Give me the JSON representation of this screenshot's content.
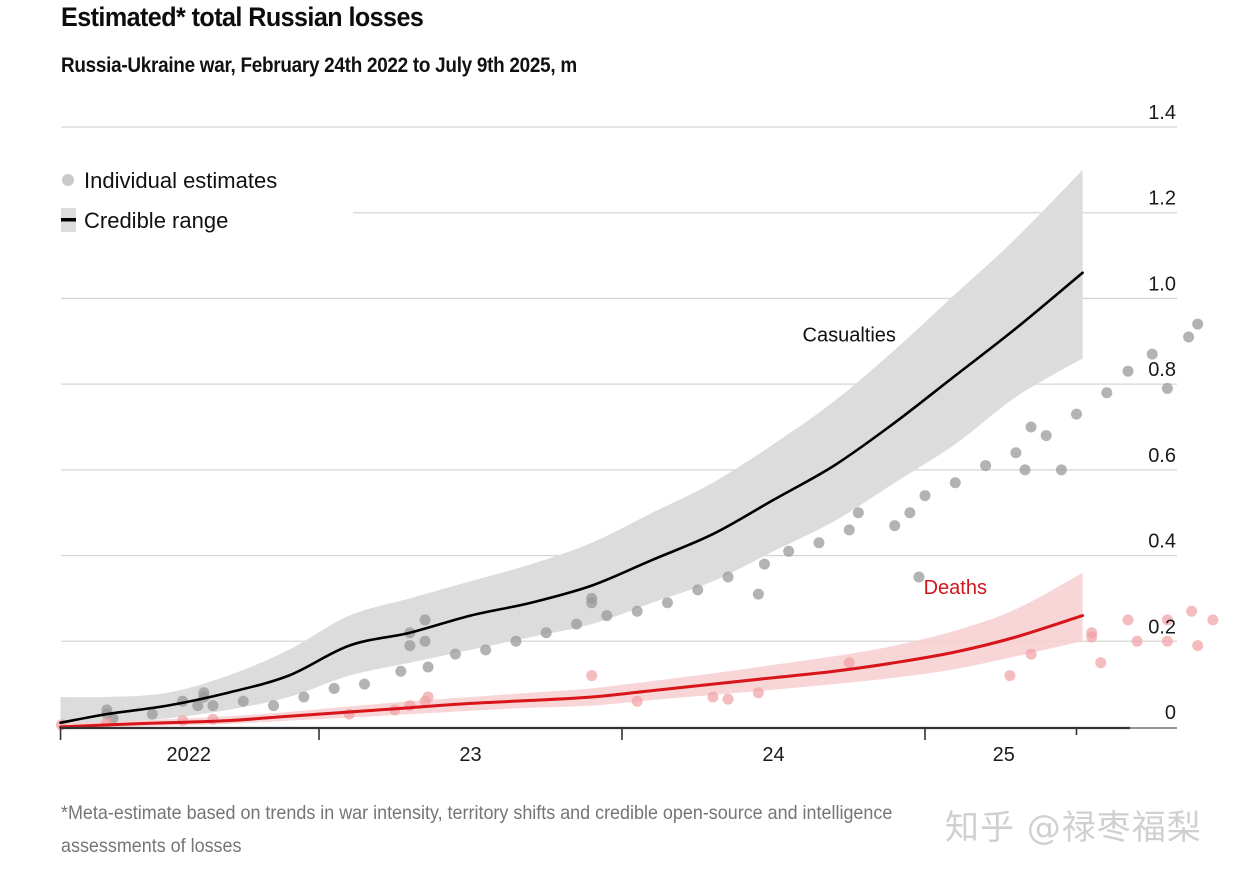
{
  "header": {
    "title": "Estimated* total Russian losses",
    "subtitle": "Russia-Ukraine war, February 24th 2022 to July 9th 2025, m"
  },
  "footnote": {
    "line1": "*Meta-estimate based on trends in war intensity, territory shifts and credible open-source and intelligence",
    "line2": "assessments of losses"
  },
  "watermark": "知乎 @禄枣福梨",
  "colors": {
    "casualties_line": "#000000",
    "casualties_band": "#dcdcdc",
    "casualties_points": "#9a9a9a",
    "deaths_line": "#d8151b",
    "deaths_band": "#f7cfd0",
    "deaths_points": "#f0a0a3",
    "grid": "#d6d6d6",
    "axis": "#333333"
  },
  "chart_data": {
    "type": "line",
    "title": "Estimated* total Russian losses",
    "subtitle": "Russia-Ukraine war, February 24th 2022 to July 9th 2025, m",
    "xlabel": "",
    "ylabel": "m",
    "x_unit": "years since Jan 1 2022",
    "xlim": [
      0.147,
      3.52
    ],
    "ylim": [
      0,
      1.4
    ],
    "y_ticks": [
      0,
      0.2,
      0.4,
      0.6,
      0.8,
      1.0,
      1.2,
      1.4
    ],
    "y_tick_labels": [
      "0",
      "0.2",
      "0.4",
      "0.6",
      "0.8",
      "1.0",
      "1.2",
      "1.4"
    ],
    "y_axis_side": "right",
    "x_ticks": [
      0.147,
      1.0,
      2.0,
      3.0,
      3.5
    ],
    "x_tick_labels": [
      {
        "label": "2022",
        "at": 0.57
      },
      {
        "label": "23",
        "at": 1.5
      },
      {
        "label": "24",
        "at": 2.5
      },
      {
        "label": "25",
        "at": 3.26
      }
    ],
    "grid": true,
    "legend": {
      "position": "top-left",
      "entries": [
        {
          "label": "Individual estimates",
          "symbol": "dot"
        },
        {
          "label": "Credible range",
          "symbol": "line-with-band"
        }
      ]
    },
    "series": [
      {
        "name": "Casualties",
        "label_at": [
          2.75,
          0.9
        ],
        "x": [
          0.147,
          0.3,
          0.5,
          0.7,
          0.9,
          1.1,
          1.3,
          1.5,
          1.7,
          1.9,
          2.1,
          2.3,
          2.5,
          2.7,
          2.9,
          3.1,
          3.3,
          3.52
        ],
        "central": [
          0.01,
          0.03,
          0.05,
          0.08,
          0.12,
          0.19,
          0.22,
          0.26,
          0.29,
          0.33,
          0.39,
          0.45,
          0.53,
          0.61,
          0.71,
          0.82,
          0.93,
          1.06
        ],
        "lower": [
          0.0,
          0.01,
          0.02,
          0.04,
          0.07,
          0.12,
          0.15,
          0.18,
          0.21,
          0.24,
          0.29,
          0.34,
          0.41,
          0.48,
          0.57,
          0.66,
          0.77,
          0.86
        ],
        "upper": [
          0.07,
          0.07,
          0.08,
          0.12,
          0.18,
          0.26,
          0.3,
          0.34,
          0.38,
          0.43,
          0.5,
          0.57,
          0.66,
          0.76,
          0.88,
          1.01,
          1.14,
          1.3
        ],
        "points": [
          [
            0.3,
            0.04
          ],
          [
            0.3,
            0.03
          ],
          [
            0.32,
            0.02
          ],
          [
            0.45,
            0.03
          ],
          [
            0.55,
            0.06
          ],
          [
            0.6,
            0.05
          ],
          [
            0.62,
            0.08
          ],
          [
            0.62,
            0.07
          ],
          [
            0.65,
            0.05
          ],
          [
            0.75,
            0.06
          ],
          [
            0.85,
            0.05
          ],
          [
            0.95,
            0.07
          ],
          [
            1.05,
            0.09
          ],
          [
            1.15,
            0.1
          ],
          [
            1.27,
            0.13
          ],
          [
            1.3,
            0.19
          ],
          [
            1.3,
            0.22
          ],
          [
            1.35,
            0.25
          ],
          [
            1.35,
            0.2
          ],
          [
            1.36,
            0.14
          ],
          [
            1.45,
            0.17
          ],
          [
            1.55,
            0.18
          ],
          [
            1.65,
            0.2
          ],
          [
            1.75,
            0.22
          ],
          [
            1.85,
            0.24
          ],
          [
            1.9,
            0.29
          ],
          [
            1.9,
            0.3
          ],
          [
            1.95,
            0.26
          ],
          [
            2.05,
            0.27
          ],
          [
            2.15,
            0.29
          ],
          [
            2.25,
            0.32
          ],
          [
            2.35,
            0.35
          ],
          [
            2.45,
            0.31
          ],
          [
            2.47,
            0.38
          ],
          [
            2.55,
            0.41
          ],
          [
            2.65,
            0.43
          ],
          [
            2.75,
            0.46
          ],
          [
            2.78,
            0.5
          ],
          [
            2.9,
            0.47
          ],
          [
            2.95,
            0.5
          ],
          [
            3.0,
            0.54
          ],
          [
            2.98,
            0.35
          ],
          [
            3.1,
            0.57
          ],
          [
            3.2,
            0.61
          ],
          [
            3.3,
            0.64
          ],
          [
            3.33,
            0.6
          ],
          [
            3.35,
            0.7
          ],
          [
            3.4,
            0.68
          ],
          [
            3.45,
            0.6
          ],
          [
            3.5,
            0.73
          ],
          [
            3.6,
            0.78
          ],
          [
            3.67,
            0.83
          ],
          [
            3.75,
            0.87
          ],
          [
            3.8,
            0.79
          ],
          [
            3.87,
            0.91
          ],
          [
            3.9,
            0.94
          ]
        ]
      },
      {
        "name": "Deaths",
        "label_at": [
          3.1,
          0.31
        ],
        "x": [
          0.147,
          0.3,
          0.5,
          0.7,
          0.9,
          1.1,
          1.3,
          1.5,
          1.7,
          1.9,
          2.1,
          2.3,
          2.5,
          2.7,
          2.9,
          3.1,
          3.3,
          3.52
        ],
        "central": [
          0.0,
          0.005,
          0.01,
          0.015,
          0.025,
          0.035,
          0.045,
          0.055,
          0.062,
          0.07,
          0.085,
          0.1,
          0.115,
          0.13,
          0.15,
          0.175,
          0.21,
          0.26
        ],
        "lower": [
          0.0,
          0.0,
          0.003,
          0.007,
          0.015,
          0.022,
          0.03,
          0.038,
          0.045,
          0.05,
          0.063,
          0.075,
          0.087,
          0.1,
          0.115,
          0.135,
          0.165,
          0.2
        ],
        "upper": [
          0.01,
          0.012,
          0.018,
          0.025,
          0.035,
          0.048,
          0.06,
          0.07,
          0.08,
          0.09,
          0.107,
          0.125,
          0.145,
          0.165,
          0.19,
          0.225,
          0.275,
          0.36
        ],
        "points": [
          [
            0.15,
            0.005
          ],
          [
            0.3,
            0.01
          ],
          [
            0.55,
            0.015
          ],
          [
            0.65,
            0.018
          ],
          [
            1.1,
            0.03
          ],
          [
            1.25,
            0.04
          ],
          [
            1.3,
            0.05
          ],
          [
            1.35,
            0.06
          ],
          [
            1.36,
            0.07
          ],
          [
            1.9,
            0.12
          ],
          [
            2.05,
            0.06
          ],
          [
            2.3,
            0.07
          ],
          [
            2.35,
            0.065
          ],
          [
            2.45,
            0.08
          ],
          [
            2.75,
            0.15
          ],
          [
            3.28,
            0.12
          ],
          [
            3.35,
            0.17
          ],
          [
            3.55,
            0.22
          ],
          [
            3.55,
            0.21
          ],
          [
            3.58,
            0.15
          ],
          [
            3.67,
            0.25
          ],
          [
            3.7,
            0.2
          ],
          [
            3.8,
            0.25
          ],
          [
            3.8,
            0.2
          ],
          [
            3.88,
            0.27
          ],
          [
            3.9,
            0.19
          ],
          [
            3.95,
            0.25
          ]
        ]
      }
    ]
  }
}
